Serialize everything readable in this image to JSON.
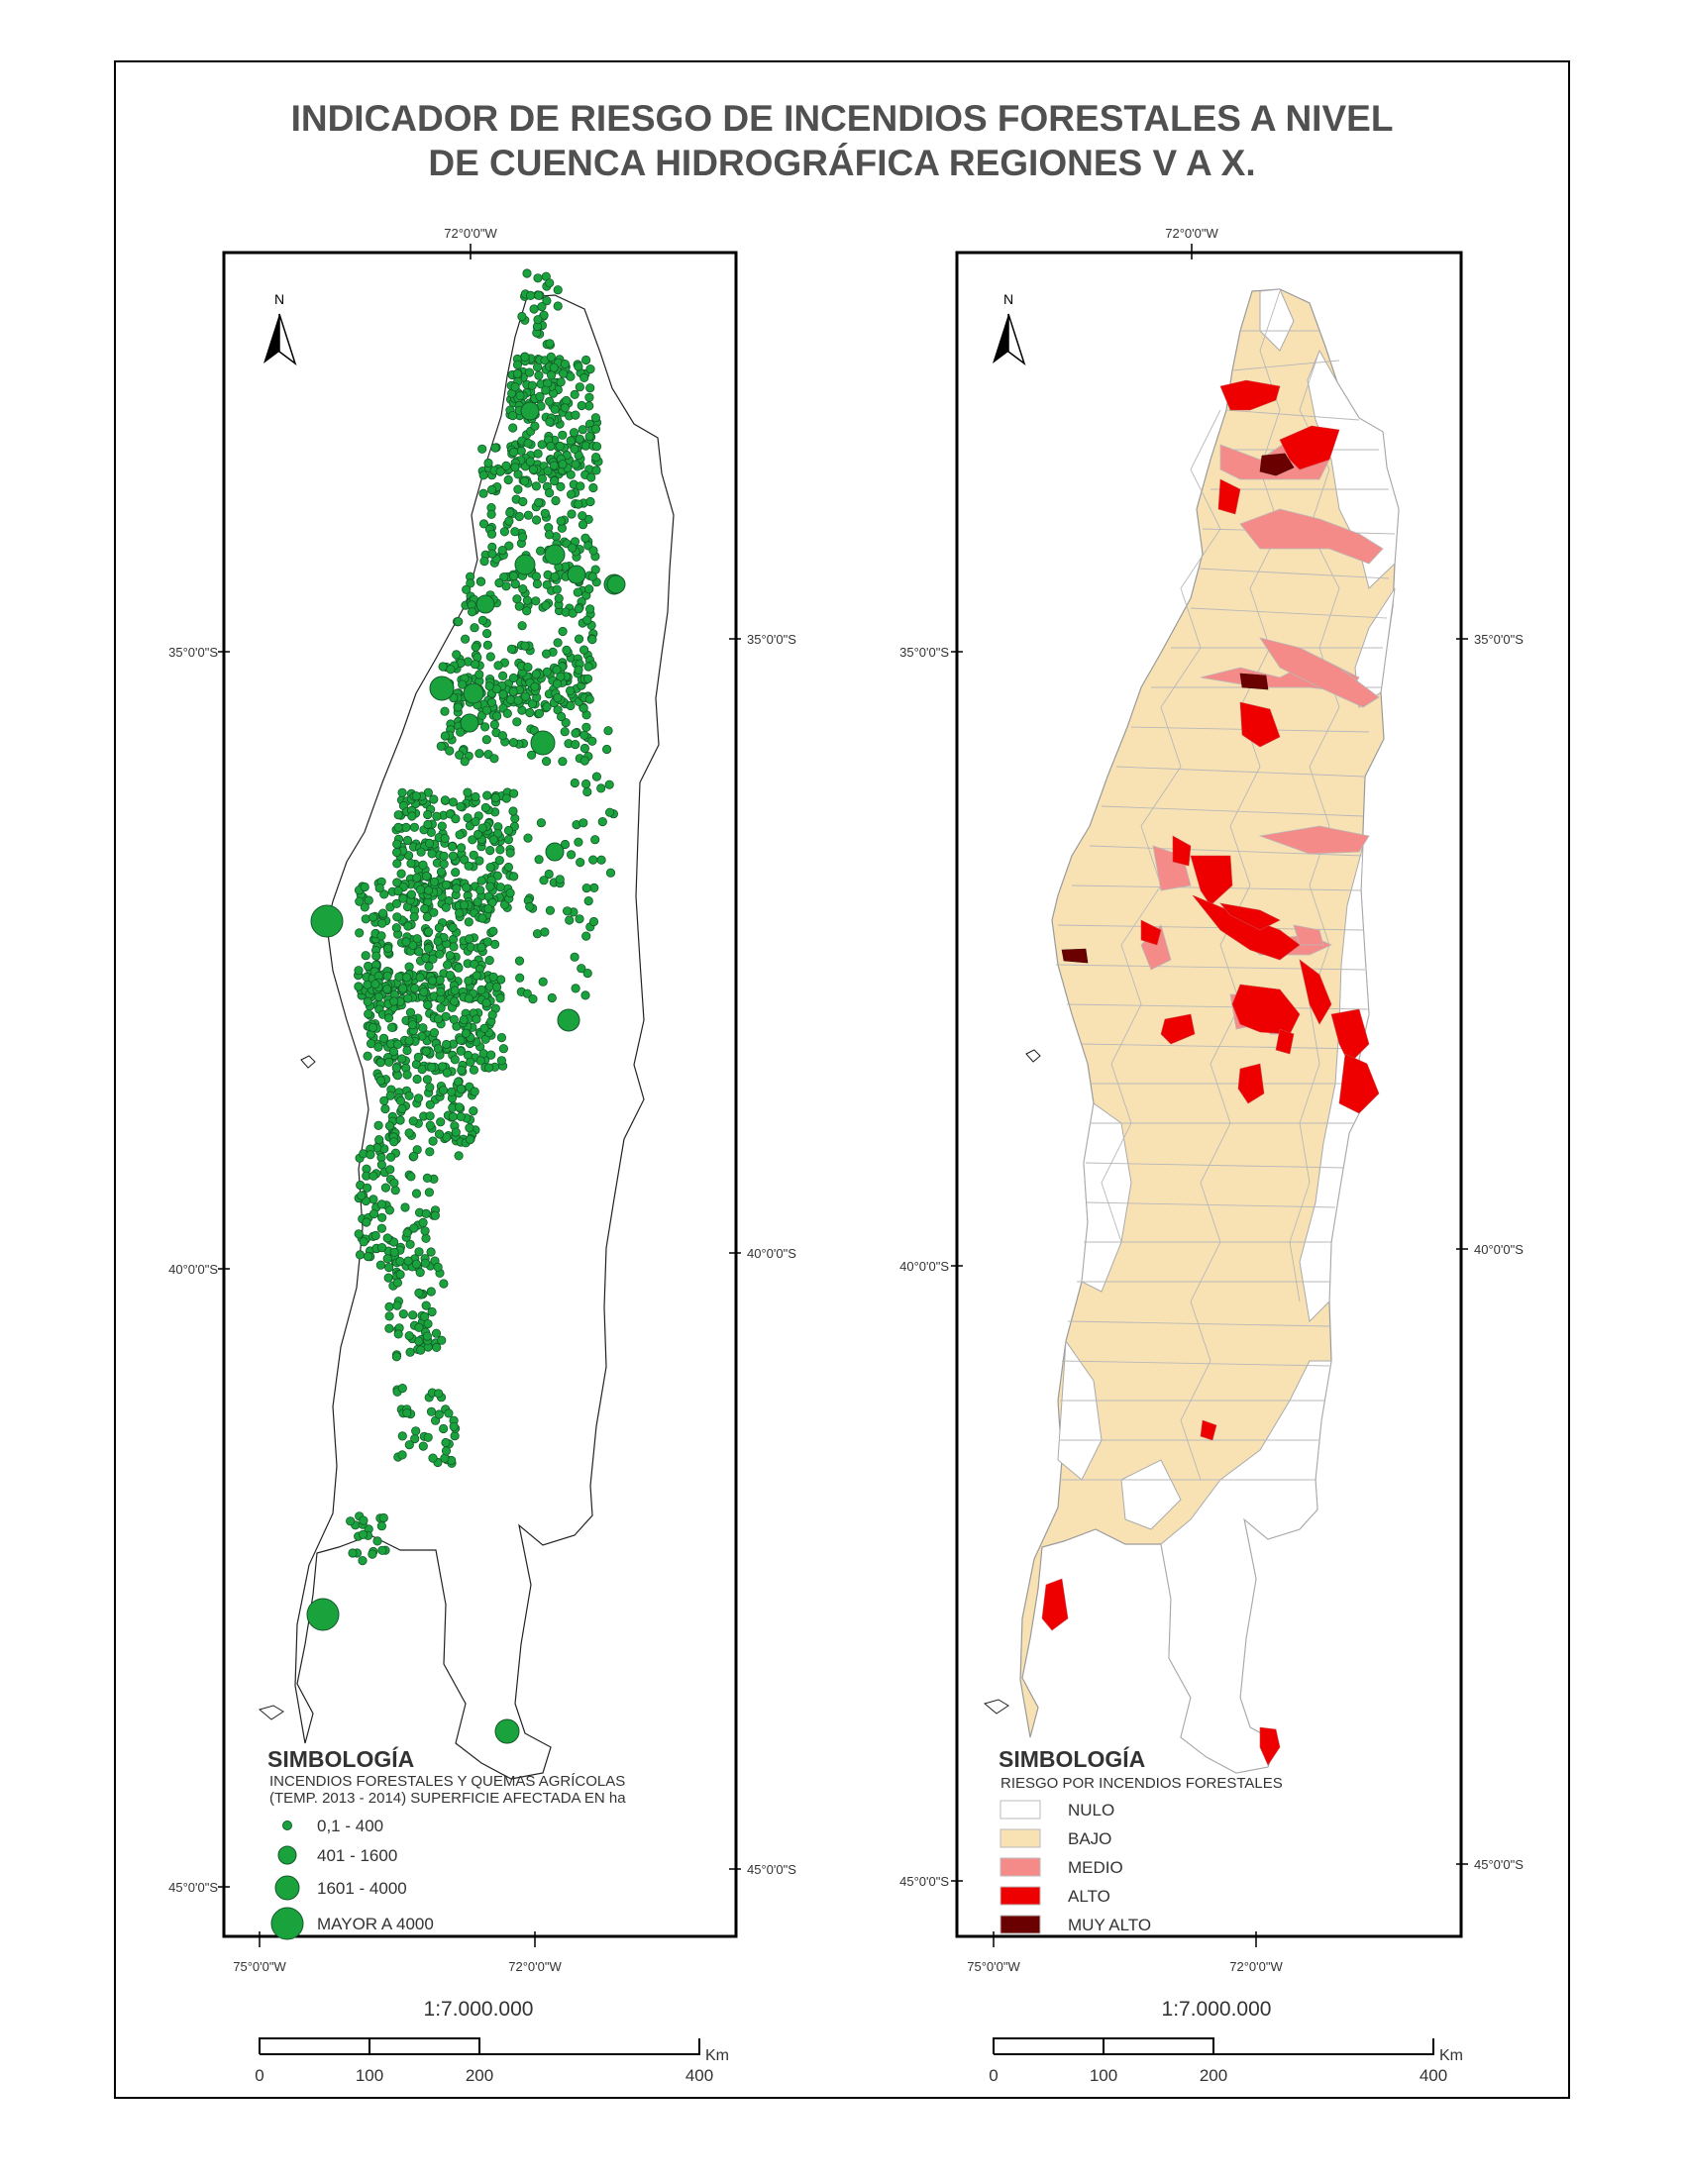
{
  "title": {
    "line1": "INDICADOR DE RIESGO DE INCENDIOS FORESTALES A NIVEL",
    "line2": "DE CUENCA HIDROGRÁFICA REGIONES V A X."
  },
  "graticule": {
    "top_lon": "72°0'0\"W",
    "bottom_lon_left": "75°0'0\"W",
    "bottom_lon_right": "72°0'0\"W",
    "lat_35": "35°0'0\"S",
    "lat_40": "40°0'0\"S",
    "lat_45": "45°0'0\"S"
  },
  "north_label": "N",
  "left_map": {
    "legend_title": "SIMBOLOGÍA",
    "legend_subtitle_1": "INCENDIOS FORESTALES Y QUEMAS AGRÍCOLAS",
    "legend_subtitle_2": "(TEMP. 2013 - 2014) SUPERFICIE AFECTADA EN ha",
    "classes": [
      "0,1 - 400",
      "401 - 1600",
      "1601 - 4000",
      "MAYOR A 4000"
    ],
    "point_color": "#1aa33c"
  },
  "right_map": {
    "legend_title": "SIMBOLOGÍA",
    "legend_subtitle": "RIESGO POR INCENDIOS FORESTALES",
    "classes": [
      {
        "label": "NULO",
        "color": "#ffffff"
      },
      {
        "label": "BAJO",
        "color": "#f8e2b4"
      },
      {
        "label": "MEDIO",
        "color": "#f58b88"
      },
      {
        "label": "ALTO",
        "color": "#ee0000"
      },
      {
        "label": "MUY ALTO",
        "color": "#6b0000"
      }
    ]
  },
  "scale": {
    "ratio": "1:7.000.000",
    "unit": "Km",
    "ticks": [
      "0",
      "100",
      "200",
      "400"
    ]
  }
}
